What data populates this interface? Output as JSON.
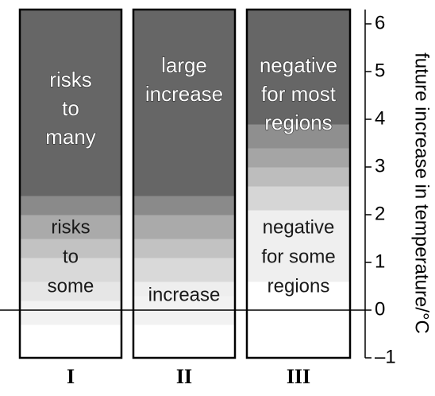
{
  "chart_data": {
    "type": "stacked-band",
    "categories": [
      "I",
      "II",
      "III"
    ],
    "y_axis": {
      "label": "future increase in temperature/°C",
      "range": [
        -1,
        6.3
      ],
      "ticks": [
        -1,
        0,
        1,
        2,
        3,
        4,
        5,
        6
      ],
      "tick_labels": [
        "–1",
        "0",
        "1",
        "2",
        "3",
        "4",
        "5",
        "6"
      ],
      "position": "right"
    },
    "reference_line": 0,
    "columns": [
      {
        "category": "I",
        "bands": [
          {
            "from": -1,
            "to": -0.3,
            "color": "#ffffff"
          },
          {
            "from": -0.3,
            "to": 0.2,
            "color": "#f2f2f2"
          },
          {
            "from": 0.2,
            "to": 0.6,
            "color": "#e6e6e6"
          },
          {
            "from": 0.6,
            "to": 1.1,
            "color": "#d9d9d9"
          },
          {
            "from": 1.1,
            "to": 1.5,
            "color": "#c2c2c2"
          },
          {
            "from": 1.5,
            "to": 2.0,
            "color": "#aaaaaa"
          },
          {
            "from": 2.0,
            "to": 2.4,
            "color": "#8a8a8a"
          },
          {
            "from": 2.4,
            "to": 6.3,
            "color": "#666666"
          }
        ],
        "labels": [
          {
            "lines": [
              "risks",
              "to",
              "many"
            ],
            "y": 4.2,
            "style": "dark"
          },
          {
            "lines": [
              "risks",
              "to",
              "some"
            ],
            "y": 1.1,
            "style": "light"
          }
        ]
      },
      {
        "category": "II",
        "bands": [
          {
            "from": -1,
            "to": -0.3,
            "color": "#ffffff"
          },
          {
            "from": -0.3,
            "to": 0.3,
            "color": "#f2f2f2"
          },
          {
            "from": 0.3,
            "to": 0.6,
            "color": "#eeeeee"
          },
          {
            "from": 0.6,
            "to": 1.1,
            "color": "#d9d9d9"
          },
          {
            "from": 1.1,
            "to": 1.5,
            "color": "#c2c2c2"
          },
          {
            "from": 1.5,
            "to": 2.0,
            "color": "#aaaaaa"
          },
          {
            "from": 2.0,
            "to": 2.4,
            "color": "#8a8a8a"
          },
          {
            "from": 2.4,
            "to": 6.3,
            "color": "#666666"
          }
        ],
        "labels": [
          {
            "lines": [
              "large",
              "increase"
            ],
            "y": 4.8,
            "style": "dark"
          },
          {
            "lines": [
              "increase"
            ],
            "y": 0.3,
            "style": "light"
          }
        ]
      },
      {
        "category": "III",
        "bands": [
          {
            "from": -1,
            "to": 0.6,
            "color": "#ffffff"
          },
          {
            "from": 0.6,
            "to": 2.1,
            "color": "#efefef"
          },
          {
            "from": 2.1,
            "to": 2.6,
            "color": "#d6d6d6"
          },
          {
            "from": 2.6,
            "to": 3.0,
            "color": "#bdbdbd"
          },
          {
            "from": 3.0,
            "to": 3.4,
            "color": "#a5a5a5"
          },
          {
            "from": 3.4,
            "to": 3.9,
            "color": "#8f8f8f"
          },
          {
            "from": 3.9,
            "to": 6.3,
            "color": "#666666"
          }
        ],
        "labels": [
          {
            "lines": [
              "negative",
              "for most",
              "regions"
            ],
            "y": 4.5,
            "style": "dark"
          },
          {
            "lines": [
              "negative",
              "for some",
              "regions"
            ],
            "y": 1.1,
            "style": "light"
          }
        ]
      }
    ],
    "legend": "none",
    "grid": false
  }
}
